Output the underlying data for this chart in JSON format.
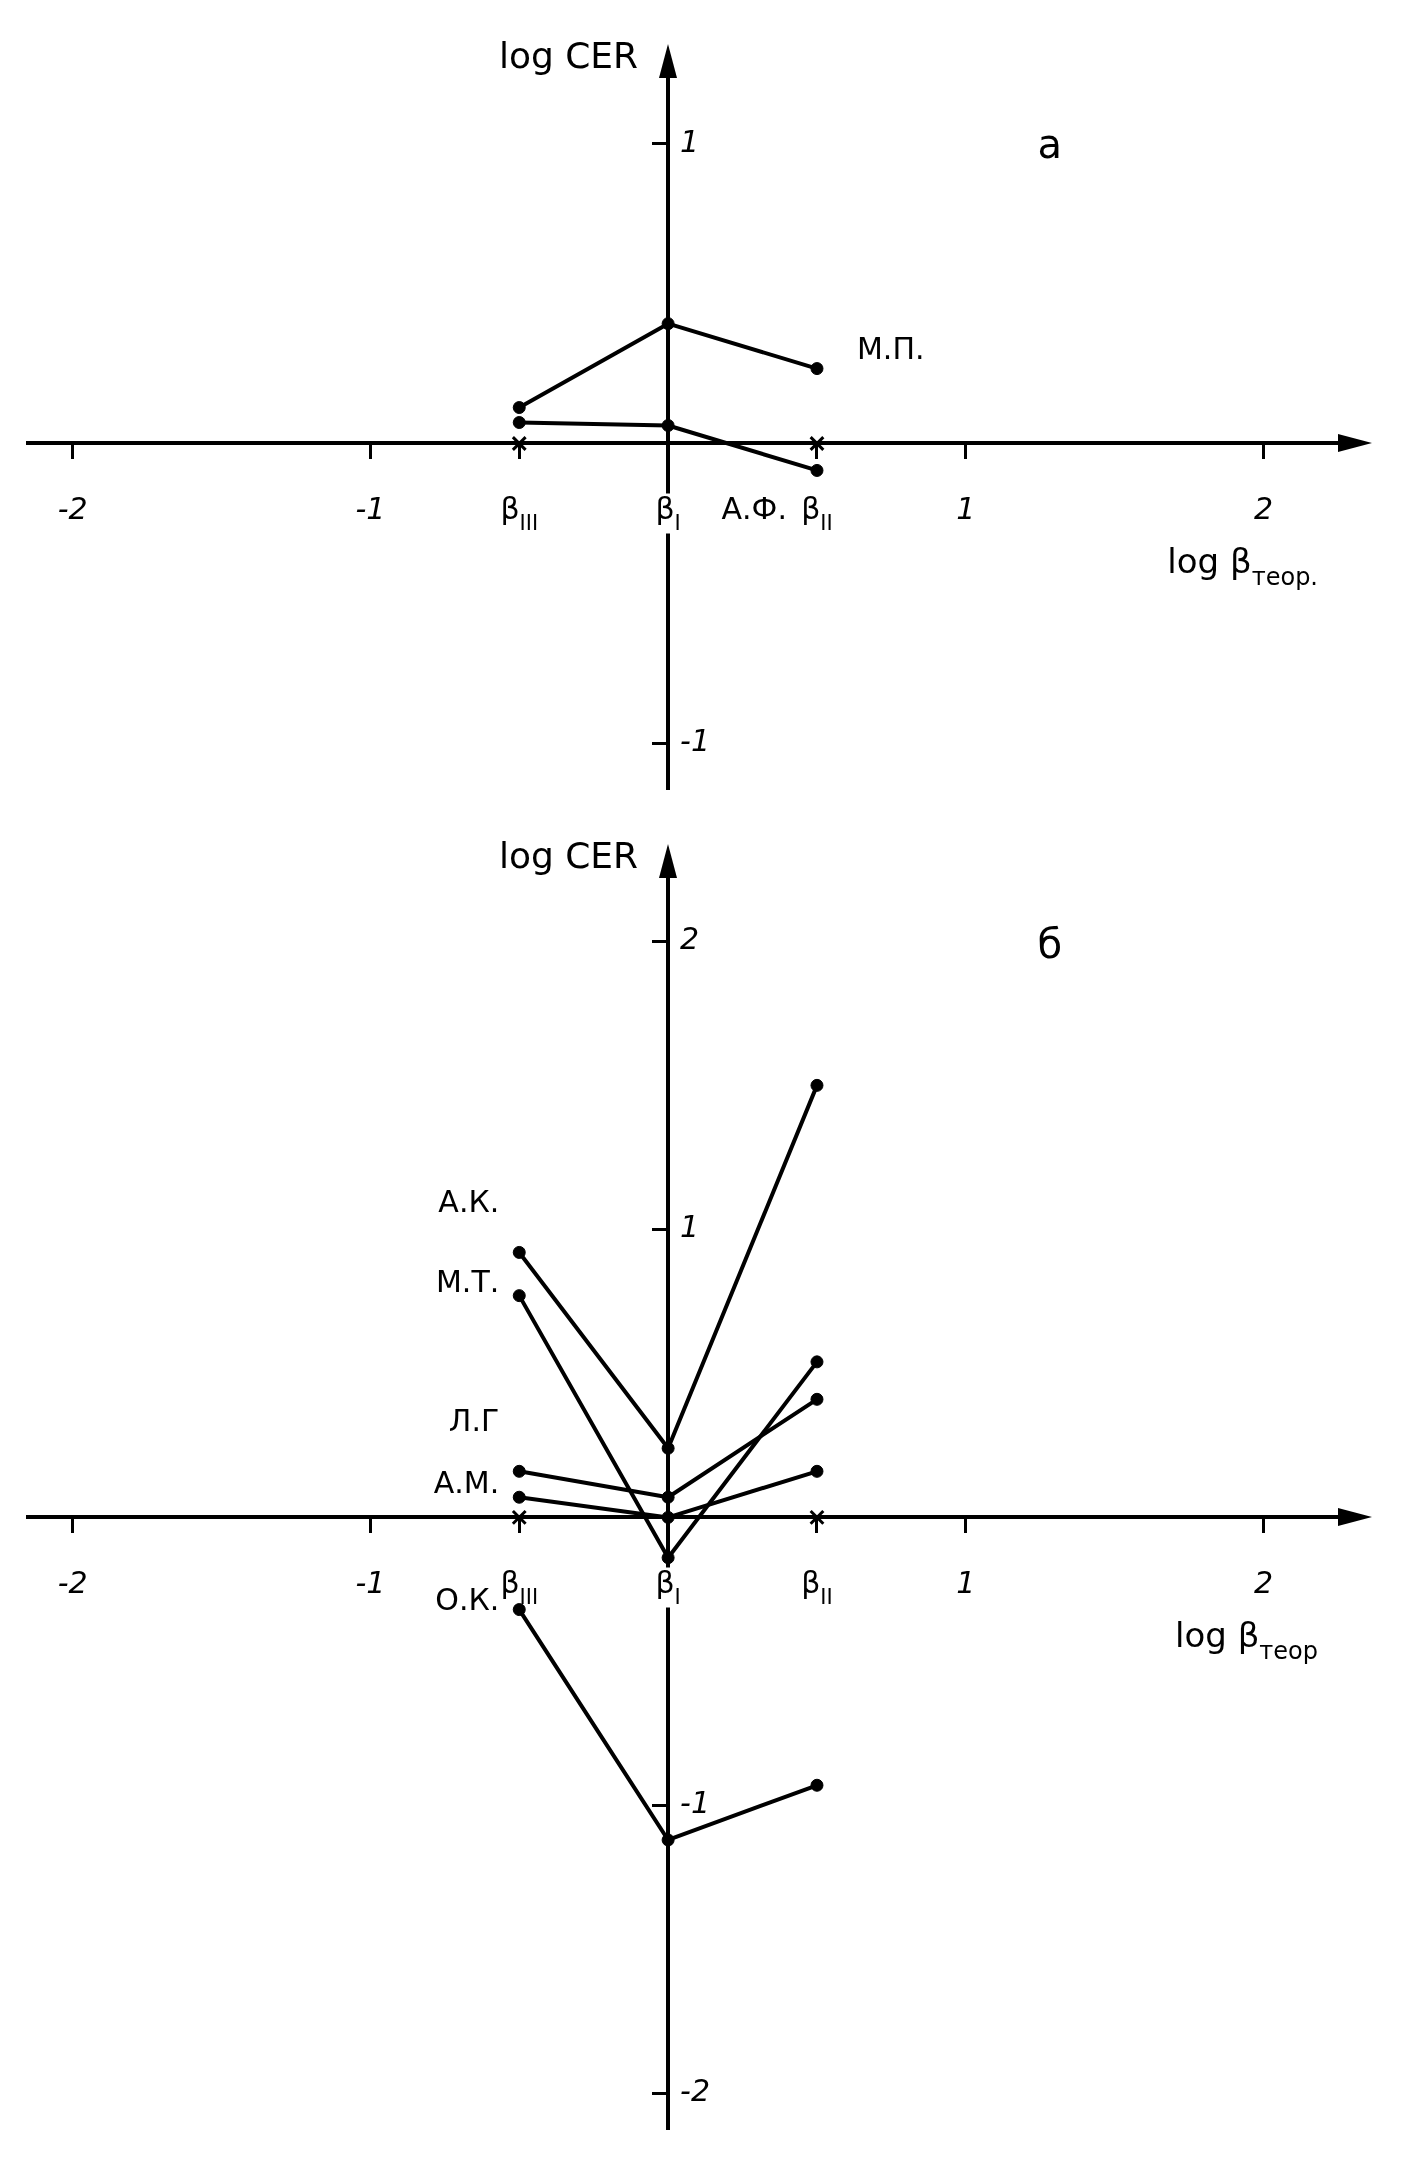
{
  "chart_data": [
    {
      "type": "line",
      "xlabel": "log β$_{теор.}$",
      "ylabel": "log CER",
      "annotations": [
        "а"
      ],
      "x": [
        -0.5,
        0,
        0.5
      ],
      "xlim": [
        -2.15,
        2.25
      ],
      "ylim": [
        -1.15,
        1.22
      ],
      "xticks": [
        -2,
        -1,
        {
          "value": -0.5,
          "label": "β$_{III}$"
        },
        {
          "value": 0,
          "label": "β$_{I}$"
        },
        {
          "value": 0.5,
          "label": "β$_{II}$"
        },
        1,
        2
      ],
      "yticks": [
        -1,
        1
      ],
      "marker": "circle",
      "legend": false,
      "grid": false,
      "series": [
        {
          "name": "М.П.",
          "color": "#000000",
          "values": [
            0.12,
            0.4,
            0.25
          ]
        },
        {
          "name": "А.Ф.",
          "color": "#000000",
          "values": [
            0.07,
            0.06,
            -0.09
          ]
        },
        {
          "type": "scatter",
          "marker": "cross",
          "color": "#000000",
          "values": [
            0,
            null,
            0
          ]
        }
      ]
    },
    {
      "type": "line",
      "xlabel": "log β$_{теор}$",
      "ylabel": "log CER",
      "annotations": [
        "б"
      ],
      "x": [
        -0.5,
        0,
        0.5
      ],
      "xlim": [
        -2.15,
        2.25
      ],
      "ylim": [
        -2.12,
        2.22
      ],
      "xticks": [
        -2,
        -1,
        {
          "value": -0.5,
          "label": "β$_{III}$"
        },
        {
          "value": 0,
          "label": "β$_{I}$"
        },
        {
          "value": 0.5,
          "label": "β$_{II}$"
        },
        1,
        2
      ],
      "yticks": [
        -2,
        -1,
        1,
        2
      ],
      "marker": "circle",
      "legend": false,
      "grid": false,
      "series": [
        {
          "name": "А.К.",
          "color": "#000000",
          "values": [
            0.92,
            0.24,
            1.5
          ]
        },
        {
          "name": "М.Т.",
          "color": "#000000",
          "values": [
            0.77,
            -0.14,
            0.54
          ]
        },
        {
          "name": "Л.Г",
          "color": "#000000",
          "values": [
            0.16,
            0.07,
            0.41
          ]
        },
        {
          "name": "А.М.",
          "color": "#000000",
          "values": [
            0.07,
            0,
            0.16
          ]
        },
        {
          "name": "О.К.",
          "color": "#000000",
          "values": [
            -0.32,
            -1.12,
            -0.93
          ]
        },
        {
          "type": "scatter",
          "marker": "cross",
          "color": "#000000",
          "values": [
            0,
            null,
            0
          ]
        }
      ]
    }
  ]
}
